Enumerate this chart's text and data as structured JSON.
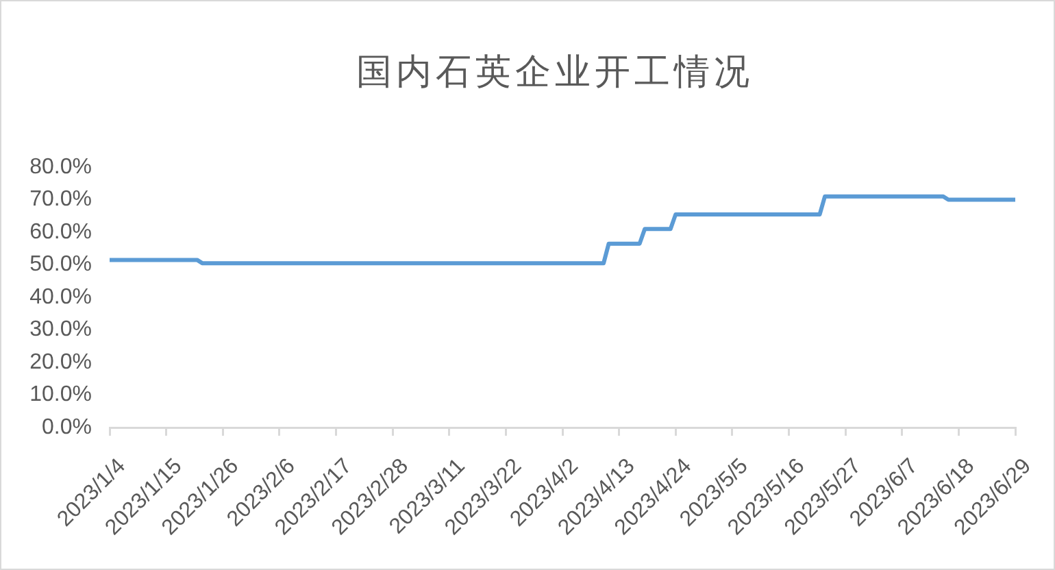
{
  "chart_data": {
    "type": "line",
    "title": "国内石英企业开工情况",
    "x": [
      "2023-01-04",
      "2023-01-21",
      "2023-01-22",
      "2023-04-10",
      "2023-04-11",
      "2023-04-17",
      "2023-04-18",
      "2023-04-23",
      "2023-04-24",
      "2023-05-22",
      "2023-05-23",
      "2023-06-15",
      "2023-06-16",
      "2023-06-29"
    ],
    "values": [
      51.5,
      51.5,
      50.5,
      50.5,
      56.5,
      56.5,
      61,
      61,
      65.5,
      65.5,
      71,
      71,
      70,
      70
    ],
    "color": "#5b9bd5",
    "xlim": [
      "2023-01-04",
      "2023-06-29"
    ],
    "xticks": [
      {
        "value": "2023-01-04",
        "label": "2023/1/4"
      },
      {
        "value": "2023-01-15",
        "label": "2023/1/15"
      },
      {
        "value": "2023-01-26",
        "label": "2023/1/26"
      },
      {
        "value": "2023-02-06",
        "label": "2023/2/6"
      },
      {
        "value": "2023-02-17",
        "label": "2023/2/17"
      },
      {
        "value": "2023-02-28",
        "label": "2023/2/28"
      },
      {
        "value": "2023-03-11",
        "label": "2023/3/11"
      },
      {
        "value": "2023-03-22",
        "label": "2023/3/22"
      },
      {
        "value": "2023-04-02",
        "label": "2023/4/2"
      },
      {
        "value": "2023-04-13",
        "label": "2023/4/13"
      },
      {
        "value": "2023-04-24",
        "label": "2023/4/24"
      },
      {
        "value": "2023-05-05",
        "label": "2023/5/5"
      },
      {
        "value": "2023-05-16",
        "label": "2023/5/16"
      },
      {
        "value": "2023-05-27",
        "label": "2023/5/27"
      },
      {
        "value": "2023-06-07",
        "label": "2023/6/7"
      },
      {
        "value": "2023-06-18",
        "label": "2023/6/18"
      },
      {
        "value": "2023-06-29",
        "label": "2023/6/29"
      }
    ],
    "ylim": [
      0,
      80
    ],
    "yticks": [
      {
        "value": 0,
        "label": "0.0%"
      },
      {
        "value": 10,
        "label": "10.0%"
      },
      {
        "value": 20,
        "label": "20.0%"
      },
      {
        "value": 30,
        "label": "30.0%"
      },
      {
        "value": 40,
        "label": "40.0%"
      },
      {
        "value": 50,
        "label": "50.0%"
      },
      {
        "value": 60,
        "label": "60.0%"
      },
      {
        "value": 70,
        "label": "70.0%"
      },
      {
        "value": 80,
        "label": "80.0%"
      }
    ]
  }
}
